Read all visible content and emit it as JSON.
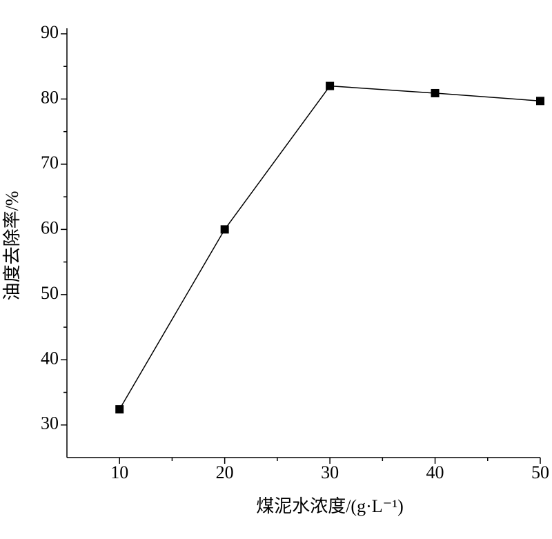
{
  "chart_data": {
    "type": "line",
    "x_label": "煤泥水浓度/(g·L⁻¹)",
    "y_label": "油度去除率/%",
    "x": [
      10,
      20,
      30,
      40,
      50
    ],
    "series": [
      {
        "name": "油度去除率",
        "color": "#000000",
        "values": [
          32.4,
          60,
          82,
          80.9,
          79.7
        ]
      }
    ],
    "xlim": [
      5,
      50
    ],
    "xticks": [
      10,
      20,
      30,
      40,
      50
    ],
    "ylim": [
      25,
      90
    ],
    "yticks": [
      30,
      40,
      50,
      60,
      70,
      80,
      90
    ],
    "grid": false
  }
}
